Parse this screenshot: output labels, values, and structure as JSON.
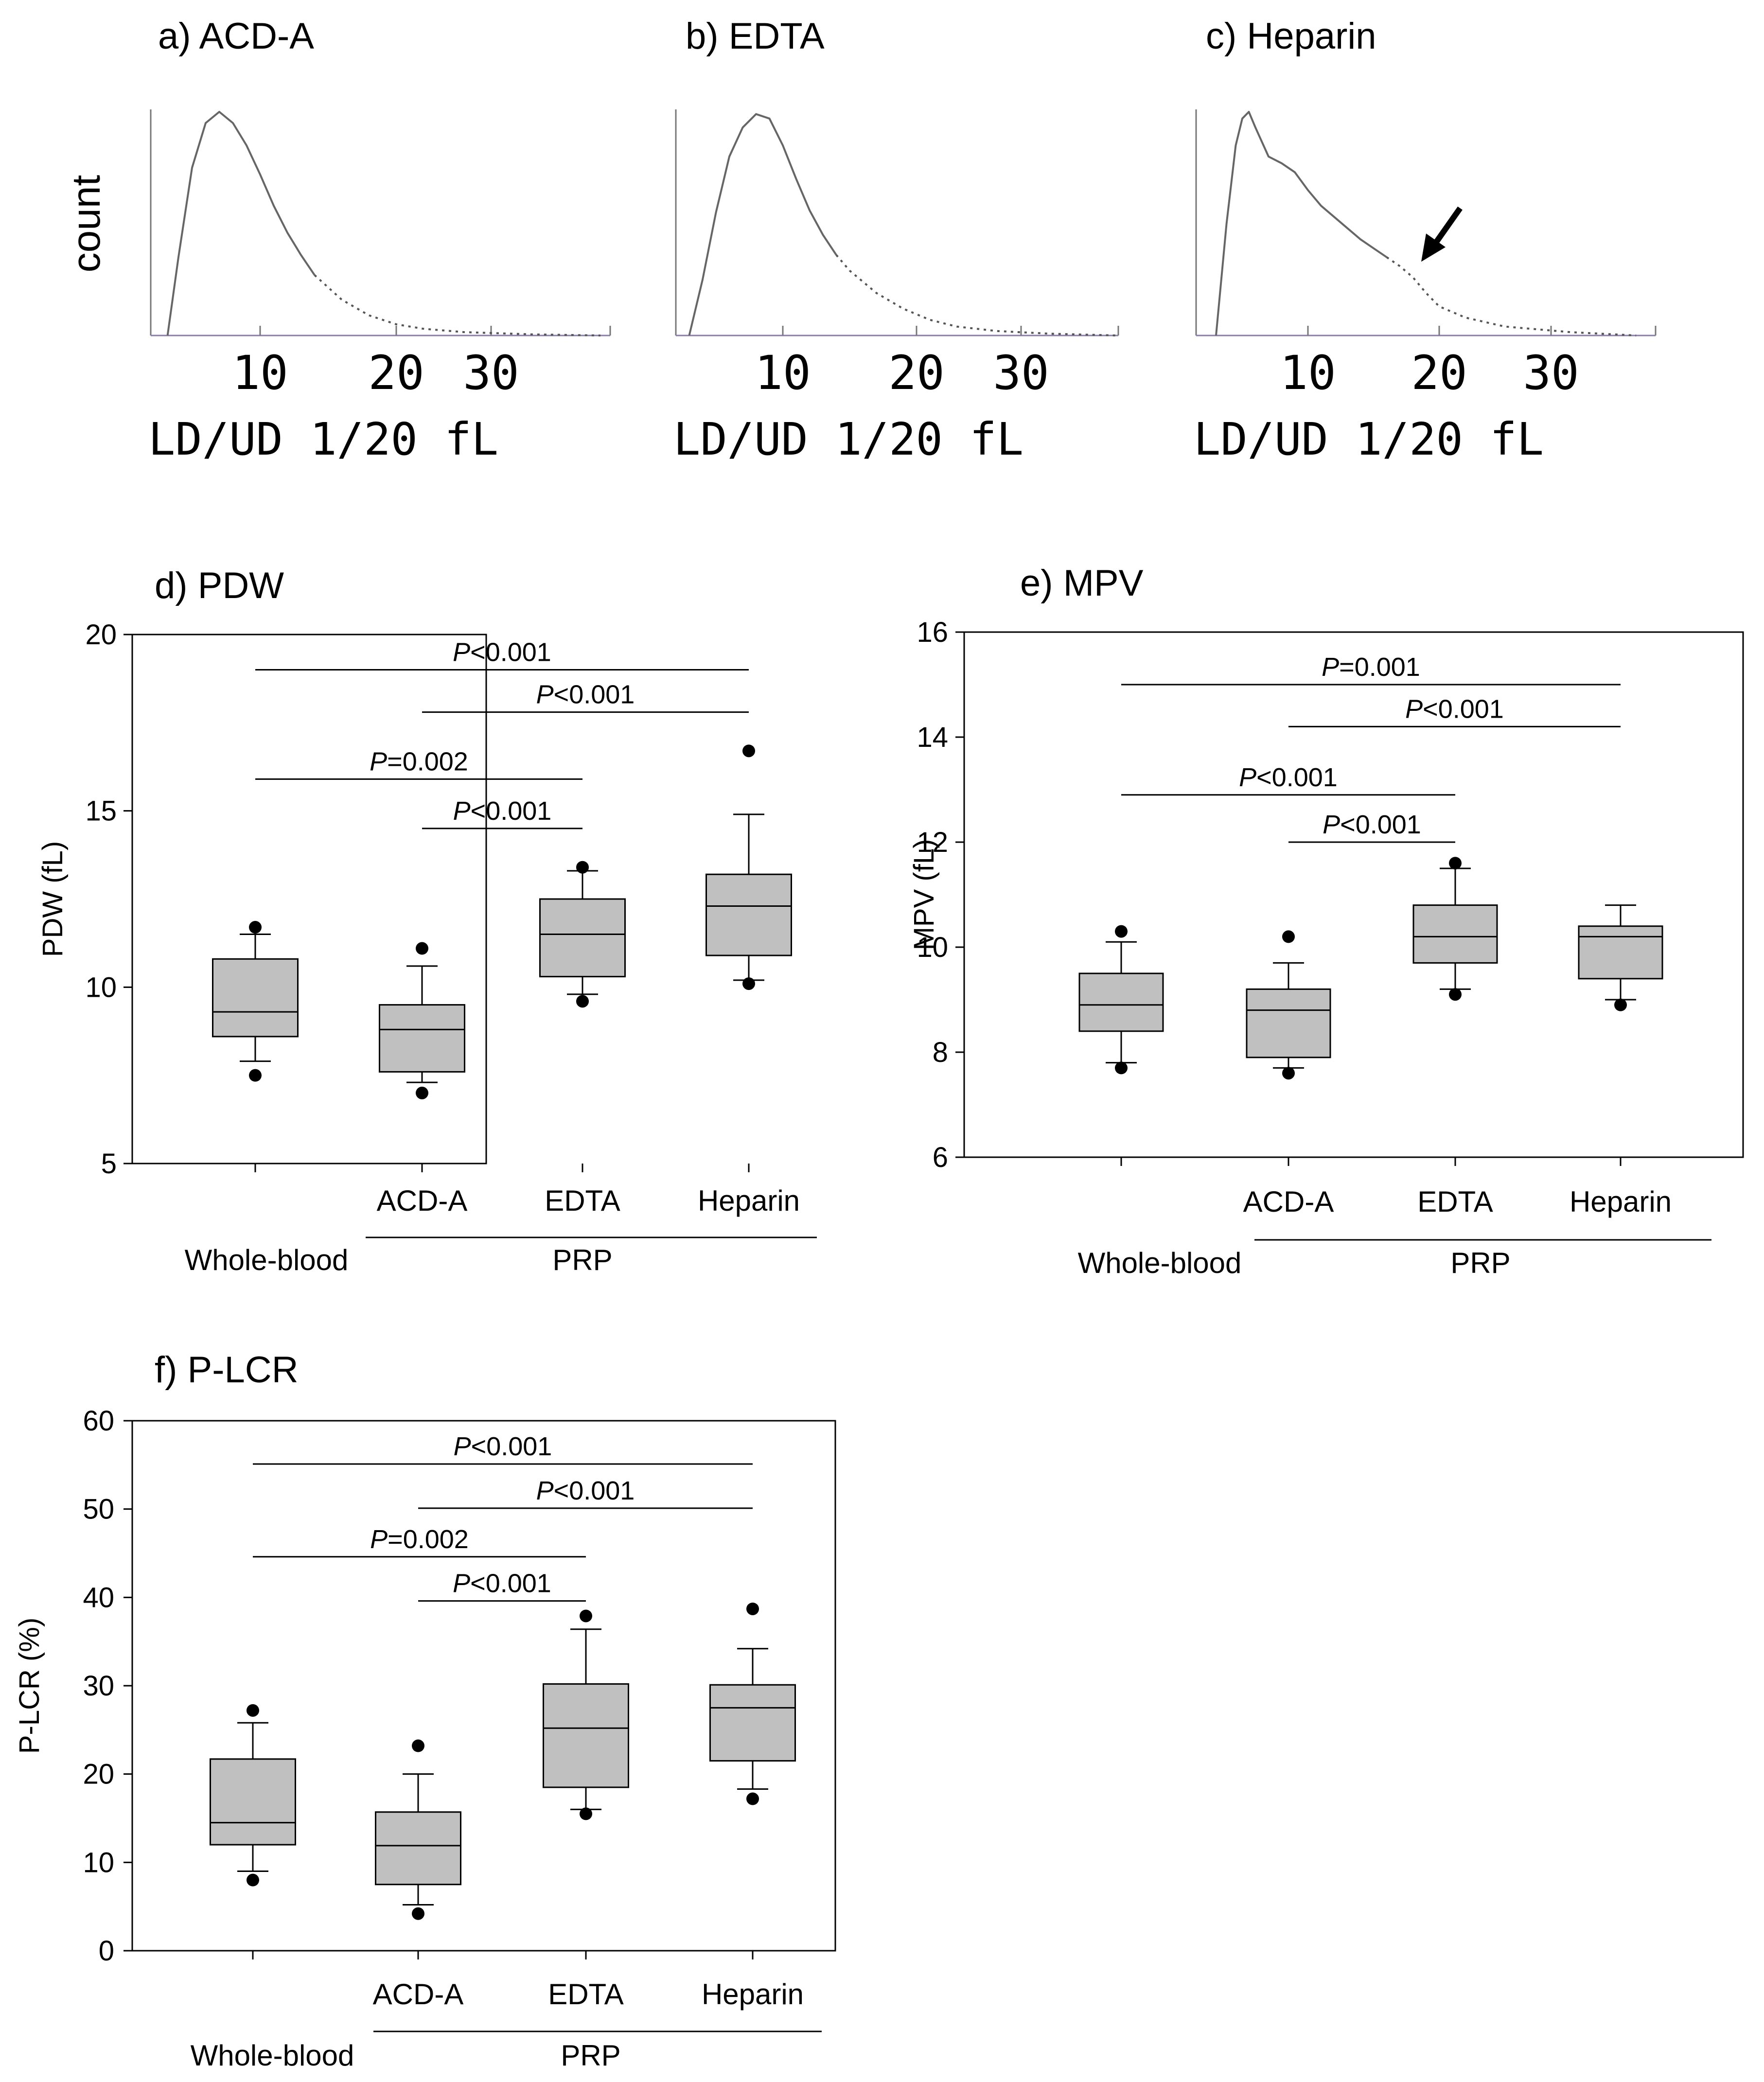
{
  "figure": {
    "histogram_x_unit": "LD/UD   1/20  fL",
    "histogram_x_ticks": [
      "10",
      "20",
      "30"
    ],
    "histogram_y_label": "count",
    "x_group_label": "PRP",
    "x_whole_blood_label": "Whole-blood"
  },
  "chart_data": [
    {
      "type": "histogram",
      "panel": "a",
      "title": "a) ACD-A",
      "xlabel": "LD/UD 1/20 fL",
      "ylabel": "count",
      "xticks": [
        10,
        20,
        30
      ],
      "xlim": [
        2,
        36
      ],
      "curve": [
        [
          3.2,
          0
        ],
        [
          4,
          0.35
        ],
        [
          5,
          0.75
        ],
        [
          6,
          0.95
        ],
        [
          7,
          1.0
        ],
        [
          8,
          0.95
        ],
        [
          9,
          0.85
        ],
        [
          10,
          0.72
        ],
        [
          11,
          0.58
        ],
        [
          12,
          0.46
        ],
        [
          13,
          0.36
        ],
        [
          14,
          0.27
        ],
        [
          16,
          0.16
        ],
        [
          18,
          0.09
        ],
        [
          20,
          0.05
        ],
        [
          22,
          0.03
        ],
        [
          25,
          0.015
        ],
        [
          30,
          0.005
        ],
        [
          35,
          0.0
        ]
      ],
      "dotted_from": 14
    },
    {
      "type": "histogram",
      "panel": "b",
      "title": "b) EDTA",
      "xlabel": "LD/UD 1/20 fL",
      "ylabel": "count",
      "xticks": [
        10,
        20,
        30
      ],
      "xlim": [
        2,
        36
      ],
      "curve": [
        [
          3,
          0
        ],
        [
          4,
          0.25
        ],
        [
          5,
          0.55
        ],
        [
          6,
          0.8
        ],
        [
          7,
          0.93
        ],
        [
          8,
          0.99
        ],
        [
          9,
          0.97
        ],
        [
          10,
          0.85
        ],
        [
          11,
          0.7
        ],
        [
          12,
          0.56
        ],
        [
          13,
          0.45
        ],
        [
          14,
          0.36
        ],
        [
          15,
          0.29
        ],
        [
          17,
          0.19
        ],
        [
          19,
          0.12
        ],
        [
          21,
          0.07
        ],
        [
          23,
          0.04
        ],
        [
          26,
          0.02
        ],
        [
          30,
          0.008
        ],
        [
          35,
          0.0
        ]
      ],
      "dotted_from": 14
    },
    {
      "type": "histogram",
      "panel": "c",
      "title": "c) Heparin",
      "xlabel": "LD/UD 1/20 fL",
      "ylabel": "count",
      "xticks": [
        10,
        20,
        30
      ],
      "xlim": [
        2,
        36
      ],
      "curve": [
        [
          3,
          0
        ],
        [
          3.8,
          0.5
        ],
        [
          4.5,
          0.85
        ],
        [
          5,
          0.97
        ],
        [
          5.5,
          1.0
        ],
        [
          6,
          0.93
        ],
        [
          7,
          0.8
        ],
        [
          8,
          0.77
        ],
        [
          9,
          0.73
        ],
        [
          10,
          0.65
        ],
        [
          11,
          0.58
        ],
        [
          12,
          0.53
        ],
        [
          13,
          0.48
        ],
        [
          14,
          0.43
        ],
        [
          15,
          0.39
        ],
        [
          16,
          0.35
        ],
        [
          17,
          0.31
        ],
        [
          18,
          0.26
        ],
        [
          19,
          0.19
        ],
        [
          20,
          0.13
        ],
        [
          22,
          0.08
        ],
        [
          25,
          0.04
        ],
        [
          30,
          0.015
        ],
        [
          35,
          0.0
        ]
      ],
      "dotted_from": 16,
      "annotation_arrow_x": 19
    },
    {
      "type": "box",
      "panel": "d",
      "title": "d) PDW",
      "ylabel": "PDW (fL)",
      "ylim": [
        5,
        20
      ],
      "yticks": [
        5,
        10,
        15,
        20
      ],
      "categories": [
        "",
        "ACD-A",
        "EDTA",
        "Heparin"
      ],
      "group_label": "PRP",
      "boxes": [
        {
          "name": "Whole-blood",
          "whisker_low": 7.9,
          "q1": 8.6,
          "median": 9.3,
          "q3": 10.8,
          "whisker_high": 11.5,
          "outliers": [
            7.5,
            11.7
          ]
        },
        {
          "name": "ACD-A",
          "whisker_low": 7.3,
          "q1": 7.6,
          "median": 8.8,
          "q3": 9.5,
          "whisker_high": 10.6,
          "outliers": [
            7.0,
            11.1
          ]
        },
        {
          "name": "EDTA",
          "whisker_low": 9.8,
          "q1": 10.3,
          "median": 11.5,
          "q3": 12.5,
          "whisker_high": 13.3,
          "outliers": [
            9.6,
            13.4
          ]
        },
        {
          "name": "Heparin",
          "whisker_low": 10.2,
          "q1": 10.9,
          "median": 12.3,
          "q3": 13.2,
          "whisker_high": 14.9,
          "outliers": [
            10.1,
            16.7
          ]
        }
      ],
      "comparisons": [
        {
          "from": 0,
          "to": 3,
          "label": "P<0.001",
          "italic_prefix": "P",
          "rest": "<0.001",
          "y": 19.0
        },
        {
          "from": 1,
          "to": 3,
          "label": "P<0.001",
          "italic_prefix": "P",
          "rest": "<0.001",
          "y": 17.8
        },
        {
          "from": 0,
          "to": 2,
          "label": "P=0.002",
          "italic_prefix": "P",
          "rest": "=0.002",
          "y": 15.9
        },
        {
          "from": 1,
          "to": 2,
          "label": "P<0.001",
          "italic_prefix": "P",
          "rest": "<0.001",
          "y": 14.5
        }
      ]
    },
    {
      "type": "box",
      "panel": "e",
      "title": "e) MPV",
      "ylabel": "MPV (fL)",
      "ylim": [
        6,
        16
      ],
      "yticks": [
        6,
        8,
        10,
        12,
        14,
        16
      ],
      "categories": [
        "",
        "ACD-A",
        "EDTA",
        "Heparin"
      ],
      "group_label": "PRP",
      "boxes": [
        {
          "name": "Whole-blood",
          "whisker_low": 7.8,
          "q1": 8.4,
          "median": 8.9,
          "q3": 9.5,
          "whisker_high": 10.1,
          "outliers": [
            7.7,
            10.3
          ]
        },
        {
          "name": "ACD-A",
          "whisker_low": 7.7,
          "q1": 7.9,
          "median": 8.8,
          "q3": 9.2,
          "whisker_high": 9.7,
          "outliers": [
            7.6,
            10.2
          ]
        },
        {
          "name": "EDTA",
          "whisker_low": 9.2,
          "q1": 9.7,
          "median": 10.2,
          "q3": 10.8,
          "whisker_high": 11.5,
          "outliers": [
            9.1,
            11.6
          ]
        },
        {
          "name": "Heparin",
          "whisker_low": 9.0,
          "q1": 9.4,
          "median": 10.2,
          "q3": 10.4,
          "whisker_high": 10.8,
          "outliers": [
            8.9
          ]
        }
      ],
      "comparisons": [
        {
          "from": 0,
          "to": 3,
          "label": "P=0.001",
          "italic_prefix": "P",
          "rest": "=0.001",
          "y": 15.0
        },
        {
          "from": 1,
          "to": 3,
          "label": "P<0.001",
          "italic_prefix": "P",
          "rest": "<0.001",
          "y": 14.2
        },
        {
          "from": 0,
          "to": 2,
          "label": "P<0.001",
          "italic_prefix": "P",
          "rest": "<0.001",
          "y": 12.9
        },
        {
          "from": 1,
          "to": 2,
          "label": "P<0.001",
          "italic_prefix": "P",
          "rest": "<0.001",
          "y": 12.0
        }
      ]
    },
    {
      "type": "box",
      "panel": "f",
      "title": "f) P-LCR",
      "ylabel": "P-LCR (%)",
      "ylim": [
        0,
        60
      ],
      "yticks": [
        0,
        10,
        20,
        30,
        40,
        50,
        60
      ],
      "categories": [
        "",
        "ACD-A",
        "EDTA",
        "Heparin"
      ],
      "group_label": "PRP",
      "boxes": [
        {
          "name": "Whole-blood",
          "whisker_low": 9.0,
          "q1": 12.0,
          "median": 14.5,
          "q3": 21.7,
          "whisker_high": 25.8,
          "outliers": [
            8.0,
            27.2
          ]
        },
        {
          "name": "ACD-A",
          "whisker_low": 5.2,
          "q1": 7.5,
          "median": 11.9,
          "q3": 15.7,
          "whisker_high": 20.0,
          "outliers": [
            4.2,
            23.2
          ]
        },
        {
          "name": "EDTA",
          "whisker_low": 16.0,
          "q1": 18.5,
          "median": 25.2,
          "q3": 30.2,
          "whisker_high": 36.4,
          "outliers": [
            15.5,
            37.9
          ]
        },
        {
          "name": "Heparin",
          "whisker_low": 18.3,
          "q1": 21.5,
          "median": 27.5,
          "q3": 30.1,
          "whisker_high": 34.2,
          "outliers": [
            17.2,
            38.7
          ]
        }
      ],
      "comparisons": [
        {
          "from": 0,
          "to": 3,
          "label": "P<0.001",
          "italic_prefix": "P",
          "rest": "<0.001",
          "y": 55.1
        },
        {
          "from": 1,
          "to": 3,
          "label": "P<0.001",
          "italic_prefix": "P",
          "rest": "<0.001",
          "y": 50.1
        },
        {
          "from": 0,
          "to": 2,
          "label": "P=0.002",
          "italic_prefix": "P",
          "rest": "=0.002",
          "y": 44.6
        },
        {
          "from": 1,
          "to": 2,
          "label": "P<0.001",
          "italic_prefix": "P",
          "rest": "<0.001",
          "y": 39.6
        }
      ]
    }
  ]
}
